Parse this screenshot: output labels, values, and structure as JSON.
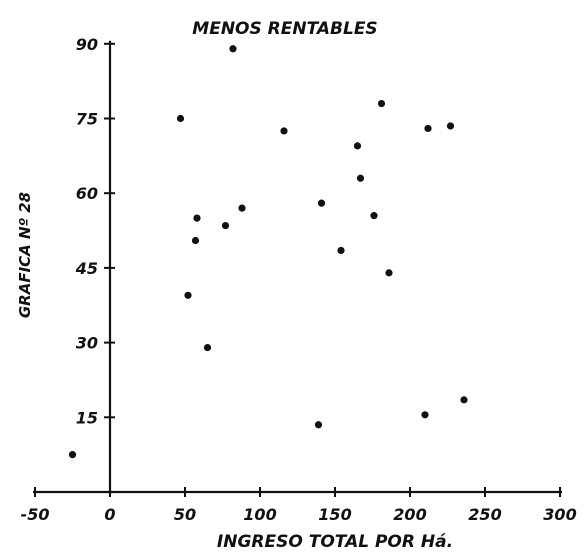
{
  "chart_data": {
    "type": "scatter",
    "title": "MENOS RENTABLES",
    "xlabel": "INGRESO TOTAL POR Há.",
    "ylabel": "GRAFICA Nº 28",
    "xlim": [
      -50,
      300
    ],
    "ylim": [
      0,
      90
    ],
    "xticks": [
      {
        "value": -50,
        "label": "-50"
      },
      {
        "value": 0,
        "label": "0"
      },
      {
        "value": 50,
        "label": "50"
      },
      {
        "value": 100,
        "label": "100"
      },
      {
        "value": 150,
        "label": "150"
      },
      {
        "value": 200,
        "label": "200"
      },
      {
        "value": 250,
        "label": "250"
      },
      {
        "value": 300,
        "label": "300"
      }
    ],
    "yticks": [
      {
        "value": 15,
        "label": "15"
      },
      {
        "value": 30,
        "label": "30"
      },
      {
        "value": 45,
        "label": "45"
      },
      {
        "value": 60,
        "label": "60"
      },
      {
        "value": 75,
        "label": "75"
      },
      {
        "value": 90,
        "label": "90"
      }
    ],
    "grid": false,
    "points": [
      {
        "x": -25,
        "y": 7.5
      },
      {
        "x": 47,
        "y": 75
      },
      {
        "x": 58,
        "y": 55
      },
      {
        "x": 57,
        "y": 50.5
      },
      {
        "x": 52,
        "y": 39.5
      },
      {
        "x": 65,
        "y": 29
      },
      {
        "x": 77,
        "y": 53.5
      },
      {
        "x": 88,
        "y": 57
      },
      {
        "x": 82,
        "y": 89
      },
      {
        "x": 116,
        "y": 72.5
      },
      {
        "x": 139,
        "y": 13.5
      },
      {
        "x": 141,
        "y": 58
      },
      {
        "x": 154,
        "y": 48.5
      },
      {
        "x": 165,
        "y": 69.5
      },
      {
        "x": 167,
        "y": 63
      },
      {
        "x": 176,
        "y": 55.5
      },
      {
        "x": 181,
        "y": 78
      },
      {
        "x": 186,
        "y": 44
      },
      {
        "x": 210,
        "y": 15.5
      },
      {
        "x": 212,
        "y": 73
      },
      {
        "x": 227,
        "y": 73.5
      },
      {
        "x": 236,
        "y": 18.5
      }
    ]
  }
}
